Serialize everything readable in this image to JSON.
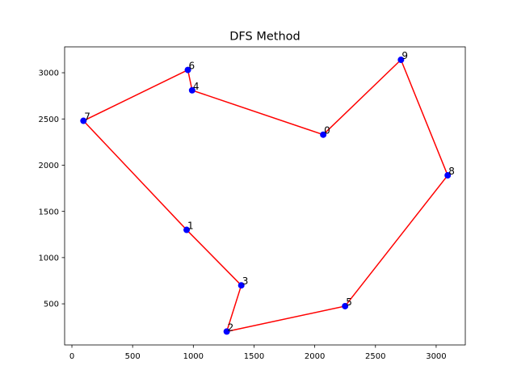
{
  "chart_data": {
    "type": "scatter",
    "title": "DFS Method",
    "xlabel": "",
    "ylabel": "",
    "xlim": [
      -60,
      3240
    ],
    "ylim": [
      55,
      3280
    ],
    "xticks": [
      0,
      500,
      1000,
      1500,
      2000,
      2500,
      3000
    ],
    "yticks": [
      500,
      1000,
      1500,
      2000,
      2500,
      3000
    ],
    "grid": false,
    "points": [
      {
        "label": "0",
        "x": 2070,
        "y": 2330
      },
      {
        "label": "1",
        "x": 945,
        "y": 1300
      },
      {
        "label": "2",
        "x": 1275,
        "y": 200
      },
      {
        "label": "3",
        "x": 1395,
        "y": 700
      },
      {
        "label": "4",
        "x": 990,
        "y": 2810
      },
      {
        "label": "5",
        "x": 2250,
        "y": 475
      },
      {
        "label": "6",
        "x": 955,
        "y": 3030
      },
      {
        "label": "7",
        "x": 95,
        "y": 2480
      },
      {
        "label": "8",
        "x": 3095,
        "y": 1890
      },
      {
        "label": "9",
        "x": 2710,
        "y": 3140
      }
    ],
    "route": [
      "0",
      "4",
      "6",
      "7",
      "1",
      "3",
      "2",
      "5",
      "8",
      "9",
      "0"
    ],
    "colors": {
      "points": "#0000ff",
      "route": "#ff0000",
      "text": "#000000"
    }
  }
}
